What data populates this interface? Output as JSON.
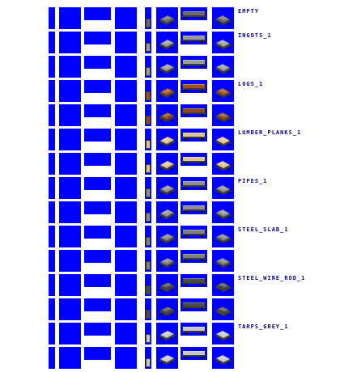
{
  "labels": {
    "empty": "EMPTY",
    "ingots": "INGOTS_1",
    "logs": "LOGS_1",
    "lumber": "LUMBER_PLANKS_1",
    "pipes": "PIPES_1",
    "steel_slab": "STEEL_SLAB_1",
    "steel_wire_rod": "STEEL_WIRE_ROD_1",
    "tarps": "TARPS_GREY_1"
  },
  "colors": {
    "sprite_background": "#0000ff",
    "label_text": "#00008b",
    "page_background": "#ffffff"
  },
  "rows": [
    {
      "label_key": "empty",
      "cargo_color": "#6b6b6b"
    },
    {
      "label_key": "ingots",
      "cargo_color": "#9a9a9a"
    },
    {
      "label_key": "",
      "cargo_color": "#9a9a9a"
    },
    {
      "label_key": "logs",
      "cargo_color": "#a0521e"
    },
    {
      "label_key": "",
      "cargo_color": "#8b4a1b"
    },
    {
      "label_key": "lumber",
      "cargo_color": "#e3c48a"
    },
    {
      "label_key": "",
      "cargo_color": "#e3c48a"
    },
    {
      "label_key": "pipes",
      "cargo_color": "#8f8f8f"
    },
    {
      "label_key": "",
      "cargo_color": "#8f8f8f"
    },
    {
      "label_key": "steel_slab",
      "cargo_color": "#7f7f7f"
    },
    {
      "label_key": "",
      "cargo_color": "#7f7f7f"
    },
    {
      "label_key": "steel_wire_rod",
      "cargo_color": "#4a4a4a"
    },
    {
      "label_key": "",
      "cargo_color": "#4a4a4a"
    },
    {
      "label_key": "tarps",
      "cargo_color": "#c8c8c8"
    },
    {
      "label_key": "",
      "cargo_color": "#c8c8c8"
    }
  ]
}
